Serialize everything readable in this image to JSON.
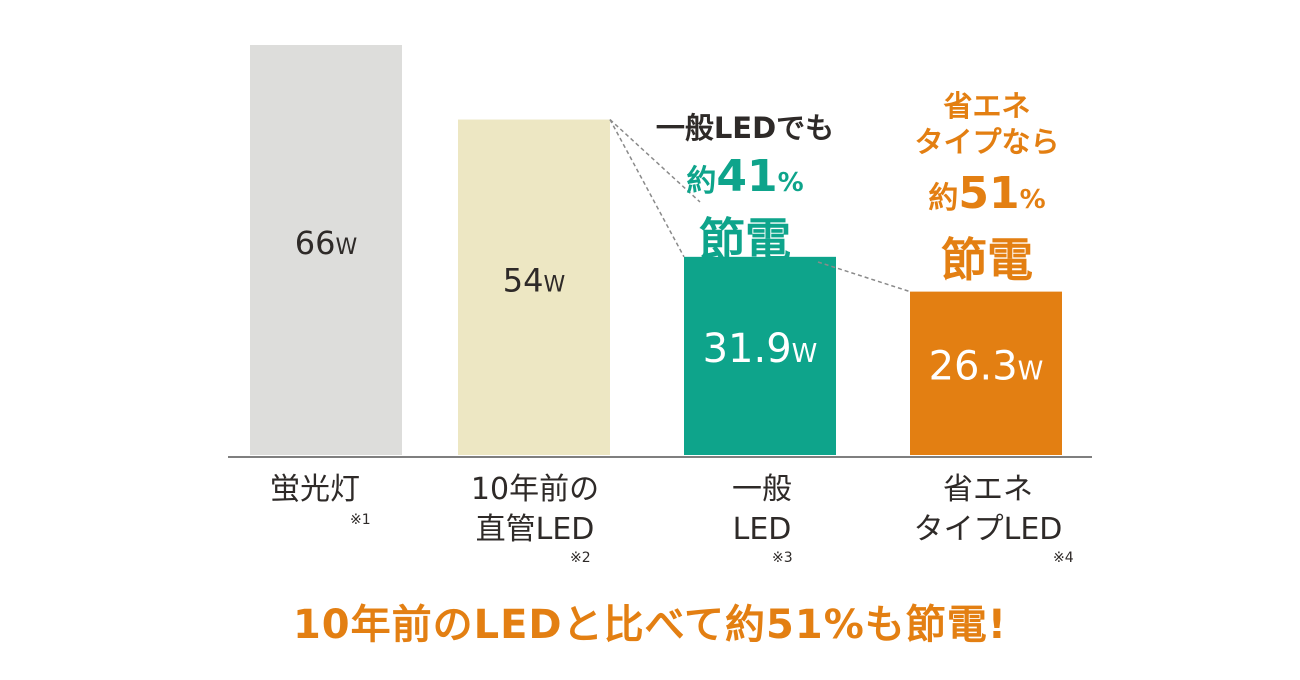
{
  "chart_data": {
    "type": "bar",
    "categories": [
      "蛍光灯",
      "10年前の直管LED",
      "一般LED",
      "省エネタイプLED"
    ],
    "category_lines": [
      [
        "蛍光灯"
      ],
      [
        "10年前の",
        "直管LED"
      ],
      [
        "一般",
        "LED"
      ],
      [
        "省エネ",
        "タイプLED"
      ]
    ],
    "notes": [
      "※1",
      "※2",
      "※3",
      "※4"
    ],
    "values": [
      66,
      54,
      31.9,
      26.3
    ],
    "value_labels": [
      {
        "num": "66",
        "unit": "W"
      },
      {
        "num": "54",
        "unit": "W"
      },
      {
        "num": "31.9",
        "unit": "W"
      },
      {
        "num": "26.3",
        "unit": "W"
      }
    ],
    "colors": [
      "#dddddb",
      "#ede7c3",
      "#0ea48b",
      "#e37f12"
    ],
    "label_colors": [
      "#2e2a28",
      "#2e2a28",
      "#ffffff",
      "#ffffff"
    ],
    "ylim": [
      0,
      66
    ]
  },
  "callouts": {
    "general": {
      "intro": "一般LEDでも",
      "prefix": "約",
      "number": "41",
      "percent": "%",
      "label": "節電",
      "color": "#0ea48b"
    },
    "eco": {
      "intro1": "省エネ",
      "intro2": "タイプなら",
      "prefix": "約",
      "number": "51",
      "percent": "%",
      "label": "節電",
      "color": "#e37f12"
    }
  },
  "footer": "10年前のLEDと比べて約51%も節電!"
}
